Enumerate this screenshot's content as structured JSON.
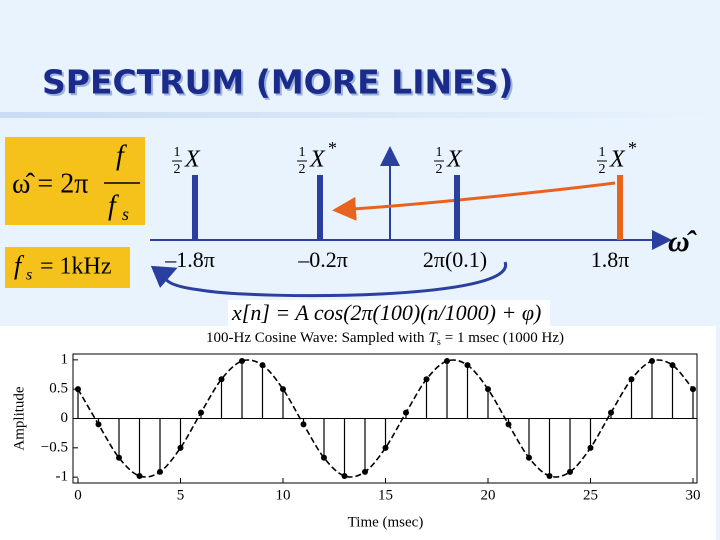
{
  "title": "SPECTRUM (MORE LINES)",
  "omega_box": {
    "lhs": "ω̂ = 2π",
    "num": "f",
    "den": "f",
    "den_sub": "s"
  },
  "fs_box": {
    "var": "f",
    "sub": "s",
    "rest": "= 1kHz"
  },
  "spectrum": {
    "axis_label": "ω̂",
    "lines": [
      {
        "coef_num": "1",
        "coef_den": "2",
        "symbol": "X",
        "freq_label": "–1.8π",
        "color": "#2a3f9e"
      },
      {
        "coef_num": "1",
        "coef_den": "2",
        "symbol": "X",
        "sup": "*",
        "freq_label": "–0.2π",
        "color": "#2a3f9e"
      },
      {
        "coef_num": "1",
        "coef_den": "2",
        "symbol": "X",
        "freq_label": "2π(0.1)",
        "color": "#2a3f9e"
      },
      {
        "coef_num": "1",
        "coef_den": "2",
        "symbol": "X",
        "sup": "*",
        "freq_label": "1.8π",
        "color": "#e8641e"
      }
    ]
  },
  "signal_formula": "x[n] = A cos(2π(100)(n/1000) + φ)",
  "chart_data": {
    "type": "stem",
    "title": "100-Hz Cosine Wave: Sampled with",
    "title_var": "T",
    "title_sub": "s",
    "title_rest": "= 1 msec (1000 Hz)",
    "x_label": "Time (msec)",
    "y_label": "Amplitude",
    "x": [
      0,
      1,
      2,
      3,
      4,
      5,
      6,
      7,
      8,
      9,
      10,
      11,
      12,
      13,
      14,
      15,
      16,
      17,
      18,
      19,
      20,
      21,
      22,
      23,
      24,
      25,
      26,
      27,
      28,
      29,
      30
    ],
    "values": [
      0.5,
      -0.1,
      -0.67,
      -0.98,
      -0.91,
      -0.5,
      0.1,
      0.67,
      0.98,
      0.91,
      0.5,
      -0.1,
      -0.67,
      -0.98,
      -0.91,
      -0.5,
      0.1,
      0.67,
      0.98,
      0.91,
      0.5,
      -0.1,
      -0.67,
      -0.98,
      -0.91,
      -0.5,
      0.1,
      0.67,
      0.98,
      0.91,
      0.5
    ],
    "color": "#000000",
    "xlim": [
      0,
      30
    ],
    "ylim": [
      -1.1,
      1.1
    ],
    "xticks": [
      0,
      5,
      10,
      15,
      20,
      25,
      30
    ],
    "yticks": [
      -1,
      {
        "value": -0.5,
        "label": "−0.5"
      },
      0,
      0.5,
      1
    ]
  }
}
